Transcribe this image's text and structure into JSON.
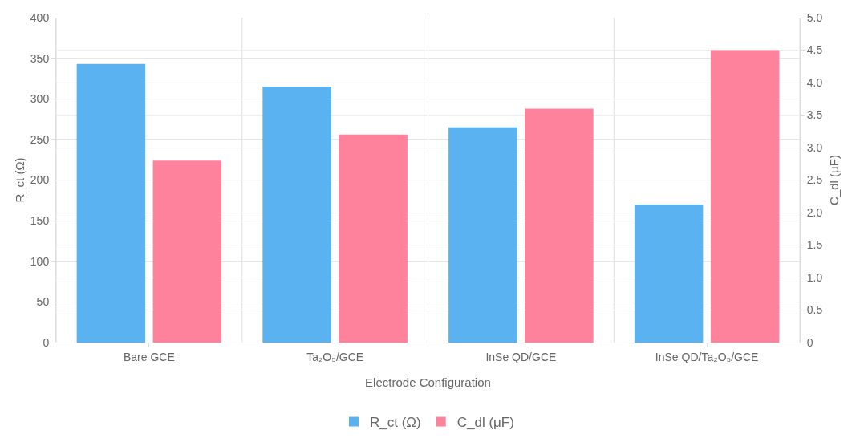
{
  "chart_data": {
    "type": "bar",
    "categories": [
      "Bare GCE",
      "Ta₂O₅/GCE",
      "InSe QD/GCE",
      "InSe QD/Ta₂O₅/GCE"
    ],
    "xlabel": "Electrode Configuration",
    "ylabel": "R_ct (Ω)",
    "y2label": "C_dl (μF)",
    "series": [
      {
        "name": "R_ct (Ω)",
        "color": "#5ab3f0",
        "values": [
          343,
          315,
          265,
          170
        ]
      },
      {
        "name": "C_dl (μF)",
        "color": "#fe829b",
        "values": [
          2.8,
          3.2,
          3.6,
          4.5
        ],
        "axis": "y2"
      }
    ],
    "ylim": [
      0,
      400
    ],
    "yticks": [
      0,
      50,
      100,
      150,
      200,
      250,
      300,
      350,
      400
    ],
    "y2lim": [
      0,
      5
    ],
    "y2ticks": [
      0,
      0.5,
      {
        "value": 1,
        "label": "1.0"
      },
      1.5,
      {
        "value": 2,
        "label": "2.0"
      },
      2.5,
      {
        "value": 3,
        "label": "3.0"
      },
      3.5,
      {
        "value": 4,
        "label": "4.0"
      },
      4.5,
      {
        "value": 5,
        "label": "5.0"
      }
    ],
    "grid": true,
    "legend": "bottom"
  }
}
